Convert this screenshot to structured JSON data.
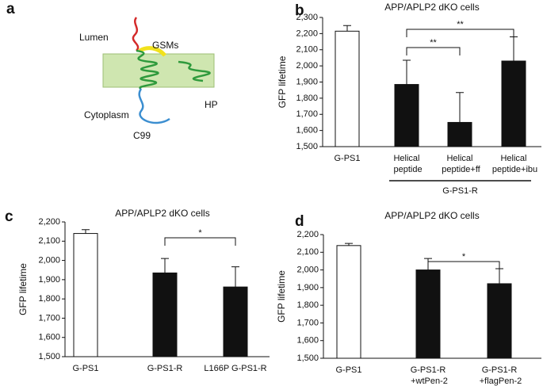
{
  "diagram": {
    "label": "a",
    "texts": [
      "Lumen",
      "GSMs",
      "HP",
      "Cytoplasm",
      "C99"
    ]
  },
  "chart_data": [
    {
      "type": "bar",
      "label": "b",
      "title": "APP/APLP2 dKO cells",
      "ylabel": "GFP lifetime",
      "categories": [
        "G-PS1",
        "Helical\npeptide",
        "Helical\npeptide+ff",
        "Helical\npeptide+ibu"
      ],
      "values": [
        2215,
        1885,
        1650,
        2030
      ],
      "errors": [
        35,
        150,
        185,
        150
      ],
      "colors": [
        "#ffffff",
        "#111111",
        "#111111",
        "#111111"
      ],
      "ylim": [
        1500,
        2300
      ],
      "yticks": [
        {
          "value": 1500,
          "label": "1,500"
        },
        {
          "value": 1600,
          "label": "1,600"
        },
        {
          "value": 1700,
          "label": "1,700"
        },
        {
          "value": 1800,
          "label": "1,800"
        },
        {
          "value": 1900,
          "label": "1,900"
        },
        {
          "value": 2000,
          "label": "2,000"
        },
        {
          "value": 2100,
          "label": "2,100"
        },
        {
          "value": 2200,
          "label": "2,200"
        },
        {
          "value": 2300,
          "label": "2,300"
        }
      ],
      "comparisons": [
        {
          "label": "**",
          "categories": [
            1,
            2
          ]
        },
        {
          "label": "**",
          "categories": [
            1,
            3
          ]
        }
      ],
      "group": {
        "label": "G-PS1-R",
        "categories": [
          1,
          3
        ]
      }
    },
    {
      "type": "bar",
      "label": "c",
      "title": "APP/APLP2 dKO cells",
      "ylabel": "GFP lifetime",
      "categories": [
        "G-PS1",
        "G-PS1-R",
        "L166P G-PS1-R"
      ],
      "values": [
        2140,
        1935,
        1862
      ],
      "errors": [
        20,
        75,
        105
      ],
      "colors": [
        "#ffffff",
        "#111111",
        "#111111"
      ],
      "ylim": [
        1500,
        2200
      ],
      "yticks": [
        {
          "value": 1500,
          "label": "1,500"
        },
        {
          "value": 1600,
          "label": "1,600"
        },
        {
          "value": 1700,
          "label": "1,700"
        },
        {
          "value": 1800,
          "label": "1,800"
        },
        {
          "value": 1900,
          "label": "1,900"
        },
        {
          "value": 2000,
          "label": "2,000"
        },
        {
          "value": 2100,
          "label": "2,100"
        },
        {
          "value": 2200,
          "label": "2,200"
        }
      ],
      "comparisons": [
        {
          "label": "*",
          "categories": [
            1,
            2
          ]
        }
      ]
    },
    {
      "type": "bar",
      "label": "d",
      "title": "APP/APLP2 dKO cells",
      "ylabel": "GFP lifetime",
      "categories": [
        "G-PS1",
        "G-PS1-R\n+wtPen-2",
        "G-PS1-R\n+flagPen-2"
      ],
      "values": [
        2138,
        2000,
        1922
      ],
      "errors": [
        12,
        65,
        85
      ],
      "colors": [
        "#ffffff",
        "#111111",
        "#111111"
      ],
      "ylim": [
        1500,
        2200
      ],
      "yticks": [
        {
          "value": 1500,
          "label": "1,500"
        },
        {
          "value": 1600,
          "label": "1,600"
        },
        {
          "value": 1700,
          "label": "1,700"
        },
        {
          "value": 1800,
          "label": "1,800"
        },
        {
          "value": 1900,
          "label": "1,900"
        },
        {
          "value": 2000,
          "label": "2,000"
        },
        {
          "value": 2100,
          "label": "2,100"
        },
        {
          "value": 2200,
          "label": "2,200"
        }
      ],
      "comparisons": [
        {
          "label": "*",
          "categories": [
            1,
            2
          ]
        }
      ]
    }
  ]
}
